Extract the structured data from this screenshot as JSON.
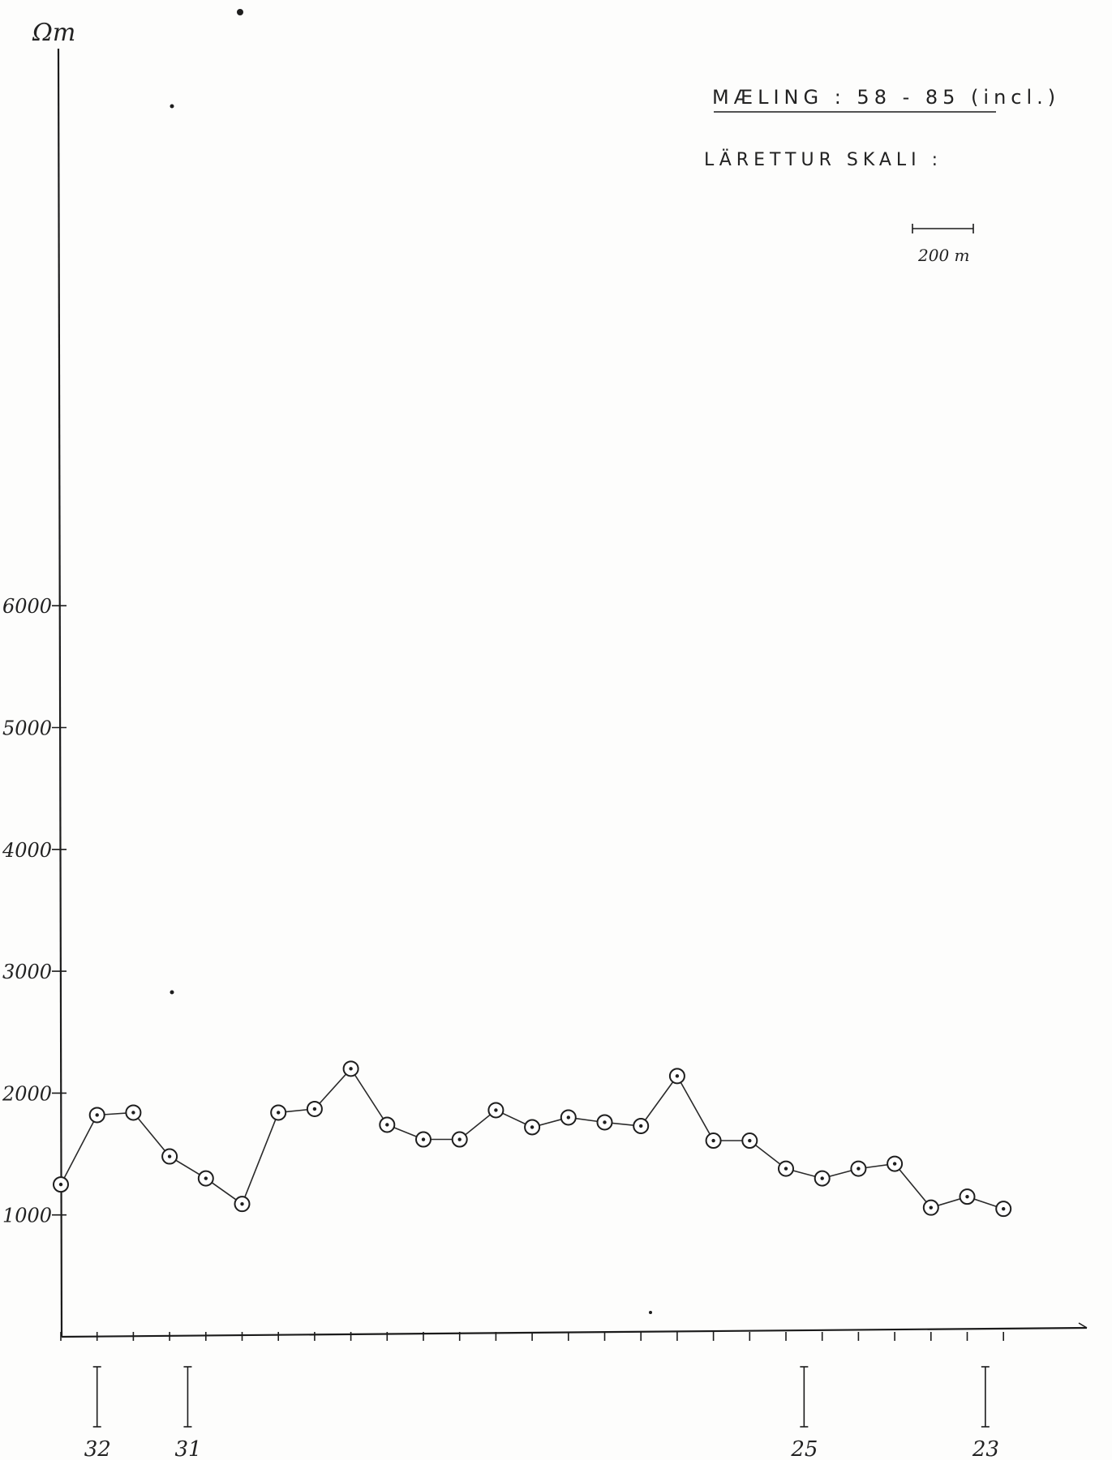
{
  "chart_data": {
    "type": "line",
    "ylabel": "Ωm",
    "y_ticks": [
      {
        "value": 1000,
        "label": "1000"
      },
      {
        "value": 2000,
        "label": "2000"
      },
      {
        "value": 3000,
        "label": "3000"
      },
      {
        "value": 4000,
        "label": "4000"
      },
      {
        "value": 5000,
        "label": "5000"
      },
      {
        "value": 6000,
        "label": "6000"
      }
    ],
    "ylim": [
      0,
      9500
    ],
    "grid": false,
    "values": [
      1250,
      1820,
      1840,
      1480,
      1300,
      1090,
      1840,
      1870,
      2200,
      1740,
      1620,
      1620,
      1860,
      1720,
      1800,
      1760,
      1730,
      2140,
      1610,
      1610,
      1380,
      1300,
      1380,
      1420,
      1060,
      1150,
      1050
    ],
    "station_markers": [
      {
        "label": "32",
        "index": 1
      },
      {
        "label": "31",
        "index": 3.5
      },
      {
        "label": "25",
        "index": 20.5
      },
      {
        "label": "23",
        "index": 25.5
      }
    ],
    "annotations": {
      "title": "MÆLING : 58 - 85 (incl.)",
      "scale_label": "LÄRETTUR SKALI :",
      "scale_bar": "200 m"
    }
  }
}
